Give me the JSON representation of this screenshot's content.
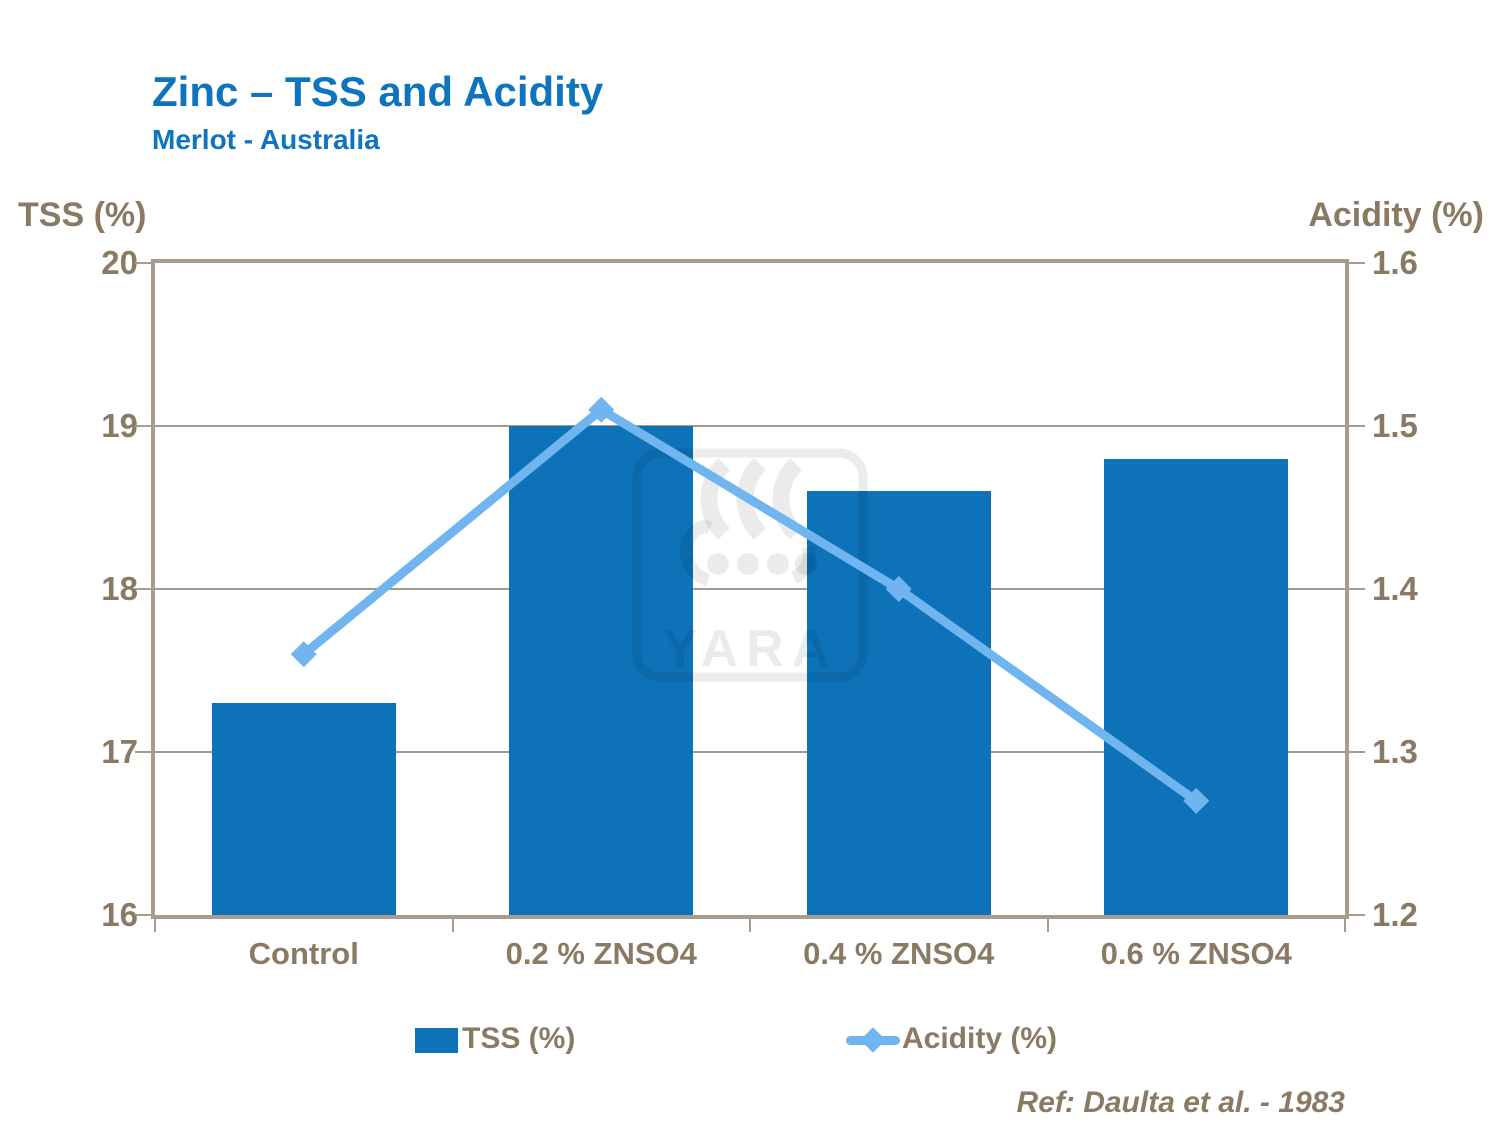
{
  "slide": {
    "title": "Zinc – TSS and Acidity",
    "subtitle": "Merlot - Australia",
    "ref": "Ref: Daulta et al. - 1983",
    "watermark": "YARA"
  },
  "chart_data": {
    "type": "bar+line",
    "categories": [
      "Control",
      "0.2 % ZNSO4",
      "0.4 % ZNSO4",
      "0.6 % ZNSO4"
    ],
    "series": [
      {
        "name": "TSS (%)",
        "type": "bar",
        "axis": "left",
        "values": [
          17.3,
          19.0,
          18.6,
          18.8
        ],
        "color": "#0d72b8"
      },
      {
        "name": "Acidity (%)",
        "type": "line",
        "axis": "right",
        "values": [
          1.36,
          1.51,
          1.4,
          1.27
        ],
        "color": "#70b4f0",
        "marker": "diamond"
      }
    ],
    "left_axis": {
      "title": "TSS (%)",
      "min": 16,
      "max": 20,
      "step": 1,
      "tick_labels": [
        "20",
        "19",
        "18",
        "17",
        "16"
      ]
    },
    "right_axis": {
      "title": "Acidity (%)",
      "min": 1.2,
      "max": 1.6,
      "step": 0.1,
      "tick_labels": [
        "1.6",
        "1.5",
        "1.4",
        "1.3",
        "1.2"
      ]
    },
    "grid": true,
    "legend_position": "bottom"
  },
  "colors": {
    "title_blue": "#0e74bd",
    "bar_blue": "#0d72b8",
    "line_blue": "#70b4f0",
    "axis_brown": "#8a7a64",
    "border_tan": "#a89c8e",
    "gridline_tan": "#a3988b"
  }
}
